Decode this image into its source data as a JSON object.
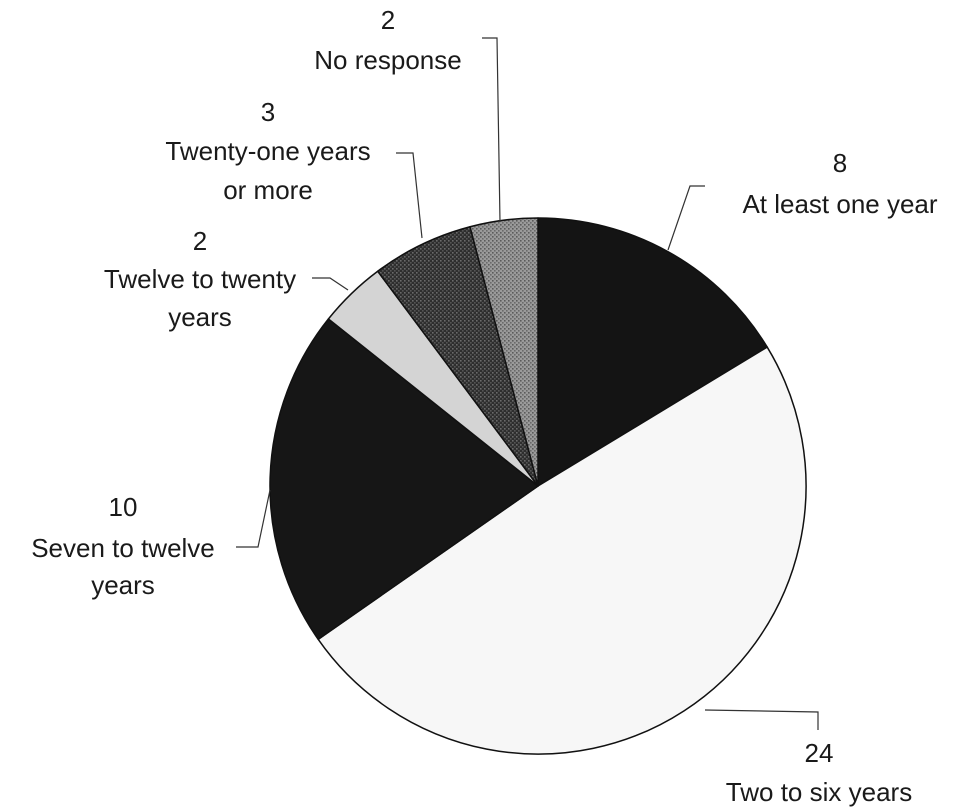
{
  "chart_data": {
    "type": "pie",
    "slices": [
      {
        "label": "At least one year",
        "value": 8,
        "color": "#141414",
        "pattern": "none"
      },
      {
        "label": "Two to six years",
        "value": 24,
        "color": "#f7f7f7",
        "pattern": "none"
      },
      {
        "label": "Seven to twelve years",
        "value": 10,
        "color": "#161616",
        "pattern": "none"
      },
      {
        "label": "Twelve to twenty years",
        "value": 2,
        "color": "#d4d4d4",
        "pattern": "none"
      },
      {
        "label": "Twenty-one years or more",
        "value": 3,
        "color": "#333333",
        "pattern": "dots-dark"
      },
      {
        "label": "No response",
        "value": 2,
        "color": "#8a8a8a",
        "pattern": "dots-light"
      }
    ],
    "labels": [
      {
        "value": "8",
        "lines": [
          "At least one year"
        ]
      },
      {
        "value": "24",
        "lines": [
          "Two to six years"
        ]
      },
      {
        "value": "10",
        "lines": [
          "Seven to twelve",
          "years"
        ]
      },
      {
        "value": "2",
        "lines": [
          "Twelve to twenty",
          "years"
        ]
      },
      {
        "value": "3",
        "lines": [
          "Twenty-one years",
          "or more"
        ]
      },
      {
        "value": "2",
        "lines": [
          "No response"
        ]
      }
    ],
    "start_angle_deg": 0,
    "direction": "clockwise",
    "legend": "none"
  }
}
